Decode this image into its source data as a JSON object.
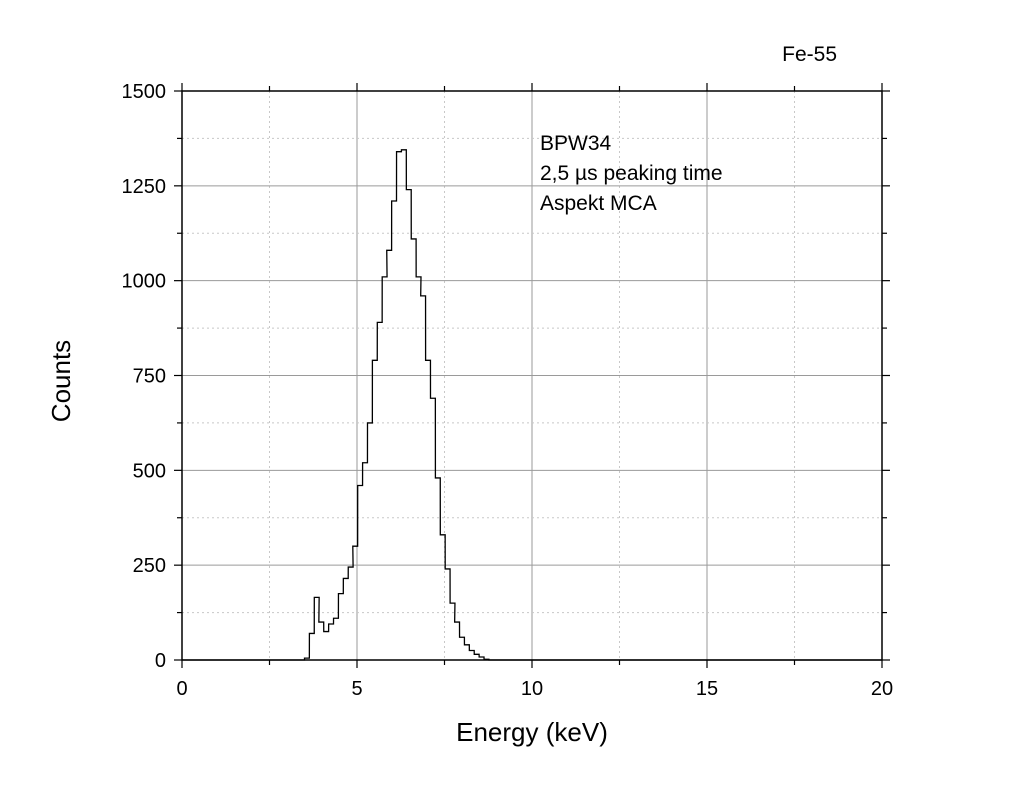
{
  "chart_data": {
    "type": "line",
    "title": "",
    "corner_label": "Fe-55",
    "annotation_lines": [
      "BPW34",
      "2,5 µs peaking time",
      "Aspekt MCA"
    ],
    "xlabel": "Energy (keV)",
    "ylabel": "Counts",
    "xlim": [
      0,
      20
    ],
    "ylim": [
      0,
      1500
    ],
    "x_ticks": [
      0,
      5,
      10,
      15,
      20
    ],
    "x_tick_labels": [
      "0",
      "5",
      "10",
      "15",
      "20"
    ],
    "y_ticks": [
      0,
      250,
      500,
      750,
      1000,
      1250,
      1500
    ],
    "y_tick_labels": [
      "0",
      "250",
      "500",
      "750",
      "1000",
      "1250",
      "1500"
    ],
    "grid": true,
    "style": "step",
    "series": [
      {
        "x": [
          3.5,
          3.64,
          3.78,
          3.91,
          4.05,
          4.19,
          4.33,
          4.47,
          4.61,
          4.75,
          4.88,
          5.02,
          5.16,
          5.3,
          5.44,
          5.58,
          5.72,
          5.85,
          5.99,
          6.13,
          6.27,
          6.41,
          6.55,
          6.69,
          6.82,
          6.96,
          7.1,
          7.24,
          7.38,
          7.52,
          7.66,
          7.79,
          7.93,
          8.07,
          8.21,
          8.35,
          8.49,
          8.63
        ],
        "values": [
          5,
          70,
          165,
          100,
          75,
          95,
          110,
          175,
          215,
          245,
          300,
          460,
          520,
          625,
          790,
          890,
          1010,
          1080,
          1210,
          1340,
          1345,
          1240,
          1110,
          1010,
          960,
          790,
          690,
          480,
          330,
          240,
          150,
          100,
          60,
          40,
          25,
          15,
          8,
          2
        ]
      }
    ]
  }
}
